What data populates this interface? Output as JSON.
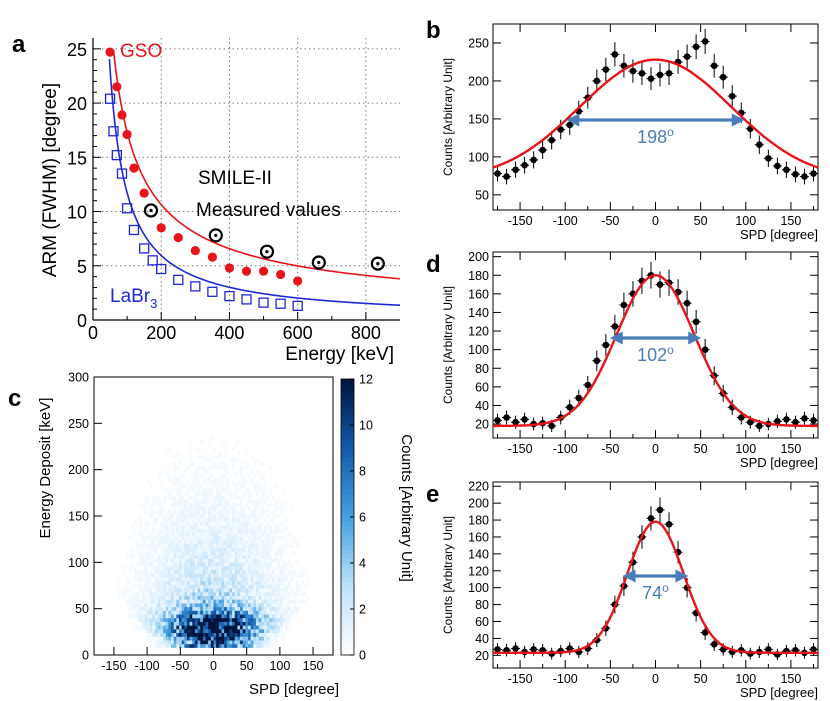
{
  "chart_data": [
    {
      "panel": "a",
      "type": "scatter",
      "xlabel": "Energy [keV]",
      "ylabel": "ARM (FWHM) [degree]",
      "xlim": [
        0,
        900
      ],
      "ylim": [
        0,
        26
      ],
      "xticks": [
        0,
        200,
        400,
        600,
        800
      ],
      "yticks": [
        0,
        5,
        10,
        15,
        20,
        25
      ],
      "grid": "dotted",
      "annotation": [
        "SMILE-II",
        "Measured values"
      ],
      "series": [
        {
          "name": "GSO",
          "color": "#e8141a",
          "marker": "filled-circle",
          "x": [
            50,
            70,
            85,
            100,
            120,
            150,
            200,
            250,
            300,
            350,
            400,
            450,
            500,
            550,
            600
          ],
          "y": [
            24.7,
            21.5,
            18.9,
            17.1,
            14.0,
            11.7,
            8.5,
            7.6,
            6.4,
            5.8,
            4.8,
            4.5,
            4.5,
            4.2,
            3.6
          ]
        },
        {
          "name": "LaBr",
          "subscript": "3",
          "color": "#1c28d8",
          "marker": "open-square",
          "x": [
            50,
            60,
            70,
            85,
            100,
            120,
            150,
            175,
            200,
            250,
            300,
            350,
            400,
            450,
            500,
            550,
            600
          ],
          "y": [
            20.4,
            17.4,
            15.2,
            13.5,
            10.3,
            8.3,
            6.6,
            5.5,
            4.7,
            3.7,
            3.1,
            2.6,
            2.2,
            1.9,
            1.6,
            1.5,
            1.3
          ]
        },
        {
          "name": "SMILE-II Measured values",
          "color": "#000000",
          "marker": "dotted-circle",
          "x": [
            170,
            360,
            510,
            662,
            835
          ],
          "y": [
            10.1,
            7.8,
            6.3,
            5.3,
            5.2
          ]
        }
      ],
      "fits": [
        {
          "name": "GSO fit",
          "color": "#e8141a",
          "formula": "20*(x/80)^-0.72+0.3"
        },
        {
          "name": "LaBr3 fit",
          "color": "#1c28d8",
          "formula": "20*(x/58)^-0.98"
        }
      ]
    },
    {
      "panel": "b",
      "type": "scatter",
      "xlabel": "SPD [degree]",
      "ylabel": "Counts [Arbitrary Unit]",
      "xlim": [
        -180,
        180
      ],
      "ylim": [
        30,
        275
      ],
      "xticks": [
        -150,
        -100,
        -50,
        0,
        50,
        100,
        150
      ],
      "yticks": [
        50,
        100,
        150,
        200,
        250
      ],
      "fit": {
        "type": "gaussian",
        "amplitude": 158,
        "mean": 0,
        "sigma": 84,
        "baseline": 70
      },
      "fwhm_value": "198",
      "fwhm_unit": "o",
      "points_x": [
        -175,
        -165,
        -155,
        -145,
        -135,
        -125,
        -115,
        -105,
        -95,
        -85,
        -75,
        -65,
        -55,
        -45,
        -35,
        -25,
        -15,
        -5,
        5,
        15,
        25,
        35,
        45,
        55,
        65,
        75,
        85,
        95,
        105,
        115,
        125,
        135,
        145,
        155,
        165,
        175
      ],
      "points_y": [
        78,
        74,
        83,
        89,
        96,
        109,
        122,
        136,
        142,
        160,
        178,
        200,
        215,
        235,
        220,
        213,
        210,
        203,
        208,
        210,
        225,
        232,
        245,
        252,
        220,
        205,
        180,
        158,
        137,
        116,
        98,
        88,
        83,
        77,
        74,
        78
      ]
    },
    {
      "panel": "d",
      "type": "scatter",
      "xlabel": "SPD [degree]",
      "ylabel": "Counts [Arbitrary Unit]",
      "xlim": [
        -180,
        180
      ],
      "ylim": [
        5,
        205
      ],
      "xticks": [
        -150,
        -100,
        -50,
        0,
        50,
        100,
        150
      ],
      "yticks": [
        20,
        40,
        60,
        80,
        100,
        120,
        140,
        160,
        180,
        200
      ],
      "fit": {
        "type": "gaussian",
        "amplitude": 162,
        "mean": 0,
        "sigma": 43,
        "baseline": 18
      },
      "fwhm_value": "102",
      "fwhm_unit": "o",
      "points_x": [
        -175,
        -165,
        -155,
        -145,
        -135,
        -125,
        -115,
        -105,
        -95,
        -85,
        -75,
        -65,
        -55,
        -45,
        -35,
        -25,
        -15,
        -5,
        5,
        15,
        25,
        35,
        45,
        55,
        65,
        75,
        85,
        95,
        105,
        115,
        125,
        135,
        145,
        155,
        165,
        175
      ],
      "points_y": [
        24,
        27,
        22,
        25,
        20,
        21,
        18,
        27,
        38,
        48,
        62,
        88,
        105,
        125,
        148,
        160,
        174,
        180,
        170,
        172,
        162,
        150,
        130,
        100,
        72,
        53,
        38,
        27,
        22,
        18,
        20,
        23,
        25,
        22,
        26,
        24
      ]
    },
    {
      "panel": "e",
      "type": "scatter",
      "xlabel": "SPD [degree]",
      "ylabel": "Counts [Arbitrary Unit]",
      "xlim": [
        -180,
        180
      ],
      "ylim": [
        5,
        225
      ],
      "xticks": [
        -150,
        -100,
        -50,
        0,
        50,
        100,
        150
      ],
      "yticks": [
        20,
        40,
        60,
        80,
        100,
        120,
        140,
        160,
        180,
        200,
        220
      ],
      "fit": {
        "type": "gaussian",
        "amplitude": 155,
        "mean": 0,
        "sigma": 31,
        "baseline": 23
      },
      "fwhm_value": "74",
      "fwhm_unit": "o",
      "points_x": [
        -175,
        -165,
        -155,
        -145,
        -135,
        -125,
        -115,
        -105,
        -95,
        -85,
        -75,
        -65,
        -55,
        -45,
        -35,
        -25,
        -15,
        -5,
        5,
        15,
        25,
        35,
        45,
        55,
        65,
        75,
        85,
        95,
        105,
        115,
        125,
        135,
        145,
        155,
        165,
        175
      ],
      "points_y": [
        27,
        26,
        28,
        24,
        27,
        26,
        22,
        25,
        28,
        24,
        28,
        38,
        52,
        80,
        102,
        130,
        160,
        182,
        192,
        175,
        142,
        100,
        70,
        47,
        33,
        27,
        24,
        26,
        22,
        24,
        27,
        21,
        25,
        26,
        23,
        27
      ]
    },
    {
      "panel": "c",
      "type": "heatmap",
      "xlabel": "SPD [degree]",
      "ylabel": "Energy Deposit [keV]",
      "xlim": [
        -180,
        180
      ],
      "ylim": [
        0,
        300
      ],
      "xticks": [
        -150,
        -100,
        -50,
        0,
        50,
        100,
        150
      ],
      "yticks": [
        0,
        50,
        100,
        150,
        200,
        250,
        300
      ],
      "colorbar_label": "Counts [Arbitrary Unit]",
      "colorbar_range": [
        0,
        12
      ],
      "colorbar_ticks": [
        0,
        2,
        4,
        6,
        8,
        10,
        12
      ],
      "description_model": {
        "peak_energy": 30,
        "peak_spd": 0,
        "max_energy": 260
      }
    }
  ],
  "panel_labels": [
    "a",
    "b",
    "c",
    "d",
    "e"
  ]
}
